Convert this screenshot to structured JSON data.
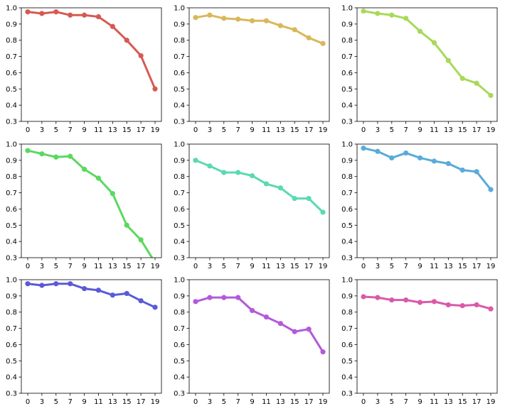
{
  "chart_data": [
    {
      "type": "line",
      "color": "#d65a52",
      "x": [
        0,
        3,
        5,
        7,
        9,
        11,
        13,
        15,
        17,
        19
      ],
      "y": [
        0.975,
        0.965,
        0.975,
        0.955,
        0.955,
        0.945,
        0.885,
        0.8,
        0.705,
        0.5
      ],
      "ylim": [
        0.3,
        1.0
      ],
      "grid": false
    },
    {
      "type": "line",
      "color": "#d8b85a",
      "x": [
        0,
        3,
        5,
        7,
        9,
        11,
        13,
        15,
        17,
        19
      ],
      "y": [
        0.94,
        0.955,
        0.935,
        0.93,
        0.92,
        0.92,
        0.89,
        0.865,
        0.815,
        0.78
      ],
      "ylim": [
        0.3,
        1.0
      ],
      "grid": false
    },
    {
      "type": "line",
      "color": "#a8d95a",
      "x": [
        0,
        3,
        5,
        7,
        9,
        11,
        13,
        15,
        17,
        19
      ],
      "y": [
        0.98,
        0.965,
        0.955,
        0.935,
        0.855,
        0.785,
        0.675,
        0.565,
        0.535,
        0.46
      ],
      "ylim": [
        0.3,
        1.0
      ],
      "grid": false
    },
    {
      "type": "line",
      "color": "#5ad95f",
      "x": [
        0,
        3,
        5,
        7,
        9,
        11,
        13,
        15,
        17,
        19
      ],
      "y": [
        0.96,
        0.94,
        0.92,
        0.925,
        0.845,
        0.79,
        0.695,
        0.5,
        0.41,
        0.27
      ],
      "ylim": [
        0.3,
        1.0
      ],
      "grid": false
    },
    {
      "type": "line",
      "color": "#5ad9b2",
      "x": [
        0,
        3,
        5,
        7,
        9,
        11,
        13,
        15,
        17,
        19
      ],
      "y": [
        0.9,
        0.865,
        0.825,
        0.825,
        0.805,
        0.755,
        0.73,
        0.665,
        0.665,
        0.58
      ],
      "ylim": [
        0.3,
        1.0
      ],
      "grid": false
    },
    {
      "type": "line",
      "color": "#5aabd9",
      "x": [
        0,
        3,
        5,
        7,
        9,
        11,
        13,
        15,
        17,
        19
      ],
      "y": [
        0.975,
        0.955,
        0.915,
        0.945,
        0.915,
        0.895,
        0.88,
        0.84,
        0.83,
        0.72
      ],
      "ylim": [
        0.3,
        1.0
      ],
      "grid": false
    },
    {
      "type": "line",
      "color": "#5a5ad9",
      "x": [
        0,
        3,
        5,
        7,
        9,
        11,
        13,
        15,
        17,
        19
      ],
      "y": [
        0.975,
        0.965,
        0.975,
        0.975,
        0.945,
        0.935,
        0.905,
        0.915,
        0.87,
        0.83
      ],
      "ylim": [
        0.3,
        1.0
      ],
      "grid": false
    },
    {
      "type": "line",
      "color": "#b25ad9",
      "x": [
        0,
        3,
        5,
        7,
        9,
        11,
        13,
        15,
        17,
        19
      ],
      "y": [
        0.865,
        0.89,
        0.89,
        0.89,
        0.81,
        0.77,
        0.73,
        0.68,
        0.695,
        0.555
      ],
      "ylim": [
        0.3,
        1.0
      ],
      "grid": false
    },
    {
      "type": "line",
      "color": "#d95aa8",
      "x": [
        0,
        3,
        5,
        7,
        9,
        11,
        13,
        15,
        17,
        19
      ],
      "y": [
        0.895,
        0.89,
        0.875,
        0.875,
        0.86,
        0.865,
        0.845,
        0.84,
        0.845,
        0.82
      ],
      "ylim": [
        0.3,
        1.0
      ],
      "grid": false
    }
  ],
  "x_tick_labels": [
    "0",
    "3",
    "5",
    "7",
    "9",
    "11",
    "13",
    "15",
    "17",
    "19"
  ],
  "y_tick_labels": [
    "0.3",
    "0.4",
    "0.5",
    "0.6",
    "0.7",
    "0.8",
    "0.9",
    "1.0"
  ]
}
